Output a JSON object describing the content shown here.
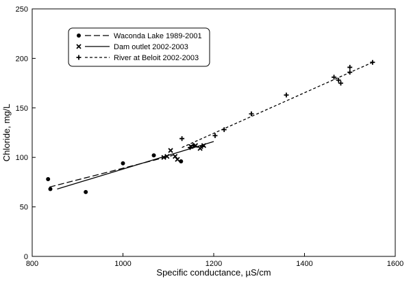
{
  "chart_data": {
    "type": "scatter",
    "xlabel": "Specific conductance, µS/cm",
    "ylabel": "Chloride, mg/L",
    "xlim": [
      800,
      1600
    ],
    "ylim": [
      0,
      250
    ],
    "xticks": [
      800,
      1000,
      1200,
      1400,
      1600
    ],
    "yticks": [
      0,
      50,
      100,
      150,
      200,
      250
    ],
    "grid": false,
    "legend_position": "top-left",
    "series": [
      {
        "name": "Waconda Lake 1989-2001",
        "marker": "circle",
        "line_style": "long-dash",
        "points": [
          [
            835,
            78
          ],
          [
            840,
            68
          ],
          [
            918,
            65
          ],
          [
            1000,
            94
          ],
          [
            1068,
            102
          ],
          [
            1128,
            96
          ]
        ],
        "fit": [
          [
            838,
            70
          ],
          [
            1110,
            102
          ]
        ]
      },
      {
        "name": "Dam outlet 2002-2003",
        "marker": "x",
        "line_style": "solid",
        "points": [
          [
            1090,
            100
          ],
          [
            1097,
            101
          ],
          [
            1105,
            107
          ],
          [
            1115,
            101
          ],
          [
            1120,
            98
          ],
          [
            1150,
            111
          ],
          [
            1160,
            112
          ],
          [
            1170,
            109
          ],
          [
            1178,
            112
          ]
        ],
        "fit": [
          [
            855,
            68
          ],
          [
            1200,
            116
          ]
        ]
      },
      {
        "name": "River at Beloit 2002-2003",
        "marker": "plus",
        "line_style": "short-dash",
        "points": [
          [
            1130,
            119
          ],
          [
            1148,
            110
          ],
          [
            1155,
            112
          ],
          [
            1175,
            111
          ],
          [
            1203,
            122
          ],
          [
            1223,
            128
          ],
          [
            1283,
            144
          ],
          [
            1360,
            163
          ],
          [
            1465,
            181
          ],
          [
            1475,
            178
          ],
          [
            1480,
            175
          ],
          [
            1500,
            191
          ],
          [
            1500,
            186
          ],
          [
            1550,
            196
          ]
        ],
        "fit": [
          [
            1130,
            110
          ],
          [
            1550,
            196
          ]
        ]
      }
    ]
  }
}
